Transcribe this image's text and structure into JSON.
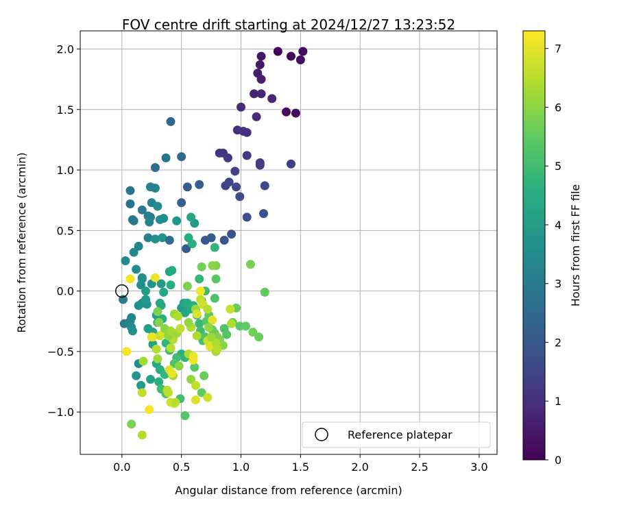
{
  "chart_data": {
    "type": "scatter",
    "title": "FOV centre drift starting at 2024/12/27 13:23:52",
    "xlabel": "Angular distance from reference (arcmin)",
    "ylabel": "Rotation from reference (arcmin)",
    "xlim": [
      -0.35,
      3.15
    ],
    "ylim": [
      -1.35,
      2.15
    ],
    "xticks": [
      0.0,
      0.5,
      1.0,
      1.5,
      2.0,
      2.5,
      3.0
    ],
    "xtick_labels": [
      "0.0",
      "0.5",
      "1.0",
      "1.5",
      "2.0",
      "2.5",
      "3.0"
    ],
    "yticks": [
      -1.0,
      -0.5,
      0.0,
      0.5,
      1.0,
      1.5,
      2.0
    ],
    "ytick_labels": [
      "−1.0",
      "−0.5",
      "0.0",
      "0.5",
      "1.0",
      "1.5",
      "2.0"
    ],
    "grid": true,
    "colormap": "viridis",
    "colorbar": {
      "label": "Hours from first FF file",
      "min": 0,
      "max": 7.3,
      "ticks": [
        0,
        1,
        2,
        3,
        4,
        5,
        6,
        7
      ],
      "tick_labels": [
        "0",
        "1",
        "2",
        "3",
        "4",
        "5",
        "6",
        "7"
      ]
    },
    "legend": {
      "position": "lower-right",
      "entries": [
        {
          "label": "Reference platepar",
          "marker": "open-circle"
        }
      ]
    },
    "reference_point": {
      "x": 0.0,
      "y": 0.0
    },
    "series": [
      {
        "points": [
          [
            1.31,
            1.98,
            0.05
          ],
          [
            1.42,
            1.94,
            0.15
          ],
          [
            1.52,
            1.98,
            0.25
          ],
          [
            1.5,
            1.91,
            0.3
          ],
          [
            1.17,
            1.94,
            0.4
          ],
          [
            1.16,
            1.87,
            0.5
          ],
          [
            1.14,
            1.8,
            0.55
          ],
          [
            1.17,
            1.75,
            0.6
          ],
          [
            1.11,
            1.63,
            0.7
          ],
          [
            1.17,
            1.63,
            0.75
          ],
          [
            1.26,
            1.59,
            0.8
          ],
          [
            1.38,
            1.48,
            0.2
          ],
          [
            1.46,
            1.47,
            0.25
          ],
          [
            1.0,
            1.52,
            0.85
          ],
          [
            1.13,
            1.44,
            0.9
          ],
          [
            0.97,
            1.33,
            0.95
          ],
          [
            1.02,
            1.32,
            1.0
          ],
          [
            1.05,
            1.31,
            1.0
          ],
          [
            0.82,
            1.14,
            1.05
          ],
          [
            0.85,
            1.14,
            1.1
          ],
          [
            0.89,
            1.1,
            1.15
          ],
          [
            1.05,
            1.12,
            1.2
          ],
          [
            1.16,
            1.06,
            1.25
          ],
          [
            1.16,
            1.04,
            1.3
          ],
          [
            1.42,
            1.05,
            1.35
          ],
          [
            0.95,
            0.99,
            1.4
          ],
          [
            0.9,
            0.9,
            1.45
          ],
          [
            0.87,
            0.87,
            1.5
          ],
          [
            0.96,
            0.86,
            1.55
          ],
          [
            1.2,
            0.87,
            1.6
          ],
          [
            0.99,
            0.78,
            1.7
          ],
          [
            1.05,
            0.61,
            1.75
          ],
          [
            1.19,
            0.64,
            1.8
          ],
          [
            0.92,
            0.47,
            1.9
          ],
          [
            0.86,
            0.42,
            1.95
          ],
          [
            0.7,
            0.42,
            2.0
          ],
          [
            0.75,
            0.44,
            2.05
          ],
          [
            0.54,
            0.35,
            2.1
          ],
          [
            0.55,
            0.86,
            2.15
          ],
          [
            0.65,
            0.88,
            2.2
          ],
          [
            0.5,
            0.73,
            2.3
          ],
          [
            0.41,
            1.4,
            2.4
          ],
          [
            0.5,
            1.11,
            2.5
          ],
          [
            0.28,
            1.02,
            2.6
          ],
          [
            0.37,
            1.1,
            2.8
          ],
          [
            0.07,
            0.83,
            2.7
          ],
          [
            0.07,
            0.72,
            2.75
          ],
          [
            0.09,
            0.59,
            2.9
          ],
          [
            0.1,
            0.58,
            2.95
          ],
          [
            0.17,
            0.67,
            3.0
          ],
          [
            0.24,
            0.61,
            3.05
          ],
          [
            0.22,
            0.62,
            3.1
          ],
          [
            0.24,
            0.86,
            3.15
          ],
          [
            0.28,
            0.85,
            3.2
          ],
          [
            0.25,
            0.73,
            3.25
          ],
          [
            0.23,
            0.57,
            3.3
          ],
          [
            0.14,
            0.37,
            3.35
          ],
          [
            0.1,
            0.32,
            3.4
          ],
          [
            0.03,
            0.25,
            3.45
          ],
          [
            0.12,
            0.18,
            3.5
          ],
          [
            0.17,
            0.11,
            3.55
          ],
          [
            0.16,
            0.05,
            3.6
          ],
          [
            0.17,
            0.1,
            3.65
          ],
          [
            0.25,
            0.06,
            3.7
          ],
          [
            0.22,
            0.44,
            3.2
          ],
          [
            0.3,
            0.7,
            3.5
          ],
          [
            0.32,
            0.59,
            3.6
          ],
          [
            0.35,
            0.6,
            3.55
          ],
          [
            0.28,
            0.43,
            3.65
          ],
          [
            0.34,
            0.44,
            3.75
          ],
          [
            0.4,
            0.42,
            2.6
          ],
          [
            0.46,
            0.58,
            3.8
          ],
          [
            0.61,
            0.56,
            3.9
          ],
          [
            0.58,
            0.61,
            4.3
          ],
          [
            0.56,
            0.44,
            4.5
          ],
          [
            0.59,
            0.39,
            4.6
          ],
          [
            0.78,
            0.36,
            4.7
          ],
          [
            0.01,
            -0.07,
            3.0
          ],
          [
            0.02,
            -0.27,
            3.1
          ],
          [
            0.07,
            -0.25,
            3.2
          ],
          [
            0.08,
            -0.22,
            3.3
          ],
          [
            0.08,
            -0.3,
            3.4
          ],
          [
            0.09,
            -0.33,
            3.5
          ],
          [
            0.14,
            -0.12,
            3.6
          ],
          [
            0.17,
            -0.1,
            3.7
          ],
          [
            0.21,
            -0.11,
            3.8
          ],
          [
            0.2,
            -0.07,
            3.9
          ],
          [
            0.2,
            0.0,
            4.0
          ],
          [
            0.22,
            -0.31,
            4.1
          ],
          [
            0.26,
            -0.34,
            4.2
          ],
          [
            0.26,
            -0.44,
            4.1
          ],
          [
            0.29,
            -0.2,
            4.0
          ],
          [
            0.3,
            -0.26,
            4.2
          ],
          [
            0.32,
            -0.1,
            4.3
          ],
          [
            0.33,
            -0.12,
            4.4
          ],
          [
            0.34,
            -0.23,
            4.5
          ],
          [
            0.36,
            -0.35,
            4.6
          ],
          [
            0.37,
            -0.43,
            4.7
          ],
          [
            0.39,
            -0.43,
            4.8
          ],
          [
            0.4,
            -0.49,
            4.9
          ],
          [
            0.33,
            0.06,
            4.0
          ],
          [
            0.4,
            0.16,
            4.2
          ],
          [
            0.42,
            0.17,
            4.4
          ],
          [
            0.41,
            0.05,
            4.6
          ],
          [
            0.35,
            -0.01,
            4.3
          ],
          [
            0.5,
            -0.14,
            4.1
          ],
          [
            0.52,
            -0.1,
            4.2
          ],
          [
            0.53,
            -0.18,
            4.3
          ],
          [
            0.55,
            -0.1,
            4.4
          ],
          [
            0.57,
            -0.15,
            4.5
          ],
          [
            0.6,
            -0.12,
            4.6
          ],
          [
            0.62,
            -0.16,
            4.7
          ],
          [
            0.63,
            -0.2,
            4.8
          ],
          [
            0.65,
            -0.27,
            4.9
          ],
          [
            0.66,
            -0.33,
            5.0
          ],
          [
            0.68,
            -0.41,
            5.1
          ],
          [
            0.7,
            -0.38,
            5.2
          ],
          [
            0.71,
            -0.25,
            5.3
          ],
          [
            0.73,
            -0.2,
            5.4
          ],
          [
            0.76,
            -0.32,
            5.5
          ],
          [
            0.78,
            -0.35,
            5.6
          ],
          [
            0.8,
            -0.38,
            5.8
          ],
          [
            0.82,
            -0.4,
            5.9
          ],
          [
            0.85,
            -0.45,
            6.0
          ],
          [
            0.65,
            0.1,
            4.8
          ],
          [
            0.7,
            0.0,
            5.0
          ],
          [
            0.67,
            -0.08,
            5.1
          ],
          [
            0.78,
            -0.06,
            5.2
          ],
          [
            0.79,
            0.1,
            5.4
          ],
          [
            0.67,
            0.2,
            5.7
          ],
          [
            0.79,
            0.21,
            5.9
          ],
          [
            0.55,
            0.04,
            5.8
          ],
          [
            0.86,
            -0.31,
            5.2
          ],
          [
            0.88,
            -0.36,
            5.3
          ],
          [
            0.93,
            -0.26,
            5.5
          ],
          [
            0.96,
            -0.14,
            5.6
          ],
          [
            0.99,
            -0.29,
            5.4
          ],
          [
            1.04,
            -0.29,
            5.5
          ],
          [
            1.1,
            -0.34,
            5.7
          ],
          [
            1.15,
            -0.38,
            5.6
          ],
          [
            1.2,
            -0.01,
            5.5
          ],
          [
            1.08,
            0.22,
            5.8
          ],
          [
            0.14,
            -0.6,
            3.5
          ],
          [
            0.12,
            -0.7,
            3.8
          ],
          [
            0.16,
            -0.78,
            4.0
          ],
          [
            0.24,
            -0.73,
            4.2
          ],
          [
            0.29,
            -0.6,
            4.4
          ],
          [
            0.32,
            -0.65,
            4.6
          ],
          [
            0.31,
            -0.75,
            4.6
          ],
          [
            0.36,
            -0.69,
            4.8
          ],
          [
            0.33,
            -0.81,
            5.0
          ],
          [
            0.37,
            -0.85,
            5.2
          ],
          [
            0.5,
            -0.52,
            4.6
          ],
          [
            0.53,
            -0.55,
            4.8
          ],
          [
            0.46,
            -0.55,
            5.0
          ],
          [
            0.44,
            -0.6,
            5.2
          ],
          [
            0.49,
            -0.89,
            5.0
          ],
          [
            0.53,
            -1.03,
            5.3
          ],
          [
            0.61,
            -0.63,
            5.4
          ],
          [
            0.67,
            -0.84,
            5.5
          ],
          [
            0.69,
            -0.7,
            5.6
          ],
          [
            0.08,
            -1.1,
            5.8
          ],
          [
            0.17,
            -0.84,
            6.6
          ],
          [
            0.18,
            -0.58,
            6.3
          ],
          [
            0.23,
            -0.98,
            7.2
          ],
          [
            0.17,
            -1.19,
            6.5
          ],
          [
            0.26,
            -0.38,
            7.1
          ],
          [
            0.29,
            -0.48,
            6.5
          ],
          [
            0.3,
            -0.56,
            6.2
          ],
          [
            0.32,
            -0.37,
            6.7
          ],
          [
            0.35,
            -0.35,
            6.9
          ],
          [
            0.38,
            -0.82,
            6.5
          ],
          [
            0.39,
            -0.84,
            6.6
          ],
          [
            0.41,
            -0.92,
            6.7
          ],
          [
            0.44,
            -0.93,
            6.8
          ],
          [
            0.45,
            -0.92,
            6.5
          ],
          [
            0.43,
            -0.7,
            6.3
          ],
          [
            0.41,
            -0.47,
            6.5
          ],
          [
            0.43,
            -0.4,
            6.4
          ],
          [
            0.46,
            -0.35,
            6.2
          ],
          [
            0.4,
            -0.65,
            6.9
          ],
          [
            0.42,
            -0.68,
            7.1
          ],
          [
            0.48,
            -0.62,
            6.0
          ],
          [
            0.44,
            -0.19,
            6.2
          ],
          [
            0.47,
            -0.21,
            6.4
          ],
          [
            0.49,
            -0.31,
            6.6
          ],
          [
            0.3,
            -0.17,
            5.8
          ],
          [
            0.31,
            -0.26,
            5.9
          ],
          [
            0.36,
            -0.31,
            6.0
          ],
          [
            0.39,
            -0.37,
            6.1
          ],
          [
            0.41,
            -0.33,
            6.3
          ],
          [
            0.56,
            -0.52,
            6.4
          ],
          [
            0.58,
            -0.73,
            6.1
          ],
          [
            0.6,
            -0.54,
            7.1
          ],
          [
            0.6,
            -0.57,
            7.2
          ],
          [
            0.62,
            -0.78,
            6.6
          ],
          [
            0.62,
            -0.9,
            6.9
          ],
          [
            0.72,
            -0.88,
            6.8
          ],
          [
            0.58,
            -0.3,
            6.4
          ],
          [
            0.56,
            -0.26,
            6.1
          ],
          [
            0.62,
            -0.15,
            6.2
          ],
          [
            0.63,
            -0.37,
            6.4
          ],
          [
            0.66,
            -0.07,
            6.6
          ],
          [
            0.68,
            -0.11,
            6.8
          ],
          [
            0.66,
            0.0,
            7.2
          ],
          [
            0.63,
            -0.19,
            6.9
          ],
          [
            0.72,
            -0.15,
            6.5
          ],
          [
            0.72,
            -0.41,
            6.7
          ],
          [
            0.74,
            -0.46,
            6.9
          ],
          [
            0.76,
            -0.24,
            7.0
          ],
          [
            0.79,
            -0.5,
            6.3
          ],
          [
            0.79,
            -0.43,
            6.4
          ],
          [
            0.8,
            -0.48,
            6.5
          ],
          [
            0.91,
            -0.15,
            6.7
          ],
          [
            0.92,
            -0.27,
            6.4
          ],
          [
            0.07,
            0.1,
            7.2
          ],
          [
            0.04,
            -0.5,
            7.2
          ],
          [
            0.28,
            0.11,
            7.1
          ],
          [
            0.25,
            -0.38,
            7.0
          ],
          [
            0.76,
            0.21,
            6.0
          ],
          [
            0.75,
            -0.38,
            6.2
          ],
          [
            0.73,
            -0.3,
            6.1
          ]
        ]
      }
    ]
  }
}
